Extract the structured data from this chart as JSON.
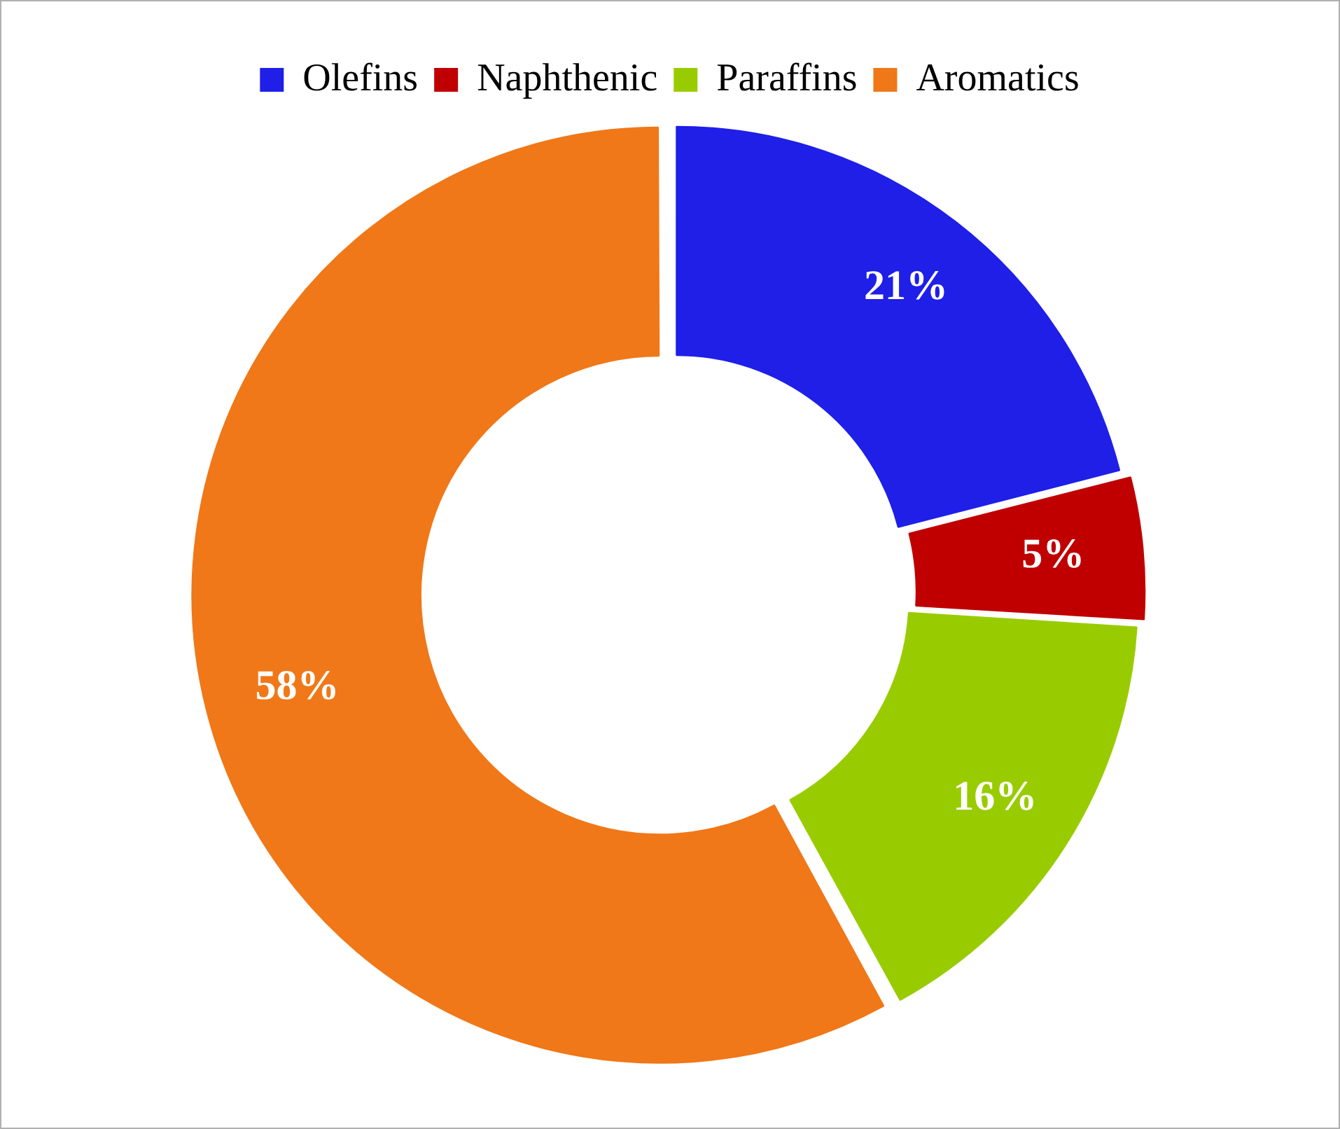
{
  "chart_data": {
    "type": "donut",
    "categories": [
      "Olefins",
      "Naphthenic",
      "Paraffins",
      "Aromatics"
    ],
    "values": [
      21,
      5,
      16,
      58
    ],
    "colors": [
      "#1f1fe8",
      "#c00000",
      "#99cc00",
      "#f07818"
    ],
    "legend": "top",
    "value_labels": [
      "21%",
      "5%",
      "16%",
      "58%"
    ]
  }
}
